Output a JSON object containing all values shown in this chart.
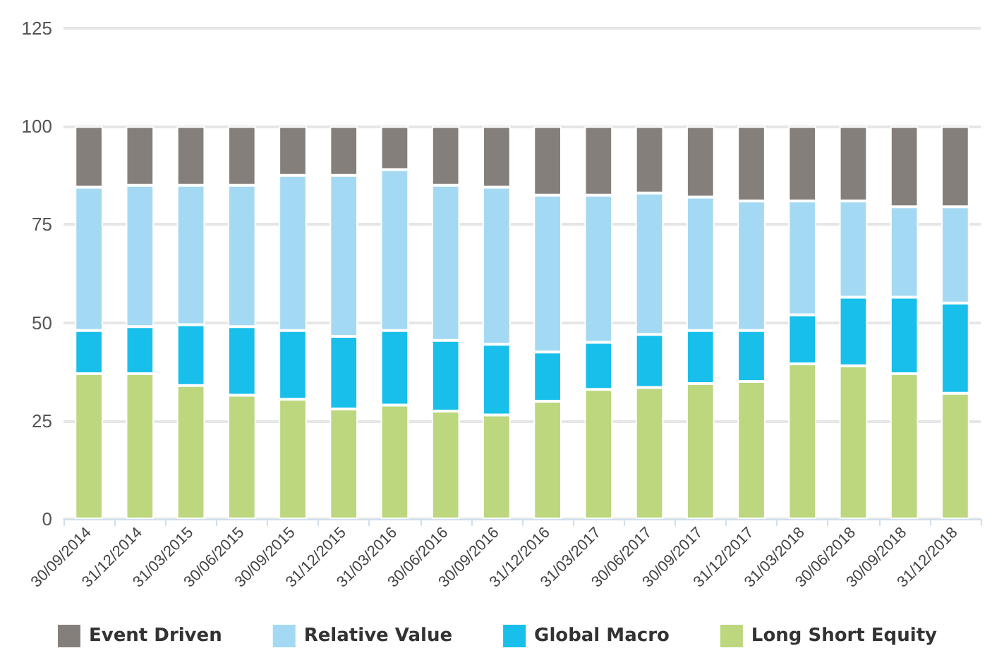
{
  "chart_data": {
    "type": "bar",
    "stacked": true,
    "categories": [
      "30/09/2014",
      "31/12/2014",
      "31/03/2015",
      "30/06/2015",
      "30/09/2015",
      "31/12/2015",
      "31/03/2016",
      "30/06/2016",
      "30/09/2016",
      "31/12/2016",
      "31/03/2017",
      "30/06/2017",
      "30/09/2017",
      "31/12/2017",
      "31/03/2018",
      "30/06/2018",
      "30/09/2018",
      "31/12/2018"
    ],
    "series": [
      {
        "name": "Long Short Equity",
        "color": "#bcd77e",
        "values": [
          37,
          37,
          34,
          31.5,
          30.5,
          28,
          29,
          27.5,
          26.5,
          30,
          33,
          33.5,
          34.5,
          35,
          39.5,
          39,
          37,
          32
        ]
      },
      {
        "name": "Global Macro",
        "color": "#17bfea",
        "values": [
          11,
          12,
          15.5,
          17.5,
          17.5,
          18.5,
          19,
          18,
          18,
          12.5,
          12,
          13.5,
          13.5,
          13,
          12.5,
          17.5,
          19.5,
          23
        ]
      },
      {
        "name": "Relative Value",
        "color": "#a4d9f3",
        "values": [
          36.5,
          36,
          35.5,
          36,
          39.5,
          41,
          41,
          39.5,
          40,
          40,
          37.5,
          36,
          34,
          33,
          29,
          24.5,
          23,
          24.5
        ]
      },
      {
        "name": "Event Driven",
        "color": "#857f7b",
        "values": [
          15.5,
          15,
          15,
          15,
          12.5,
          12.5,
          11,
          15,
          15.5,
          17.5,
          17.5,
          17,
          18,
          19,
          19,
          19,
          20.5,
          20.5
        ]
      }
    ],
    "ylim": [
      0,
      125
    ],
    "yticks": [
      0,
      25,
      50,
      75,
      100,
      125
    ],
    "grid": "y",
    "legend": "bottom"
  }
}
